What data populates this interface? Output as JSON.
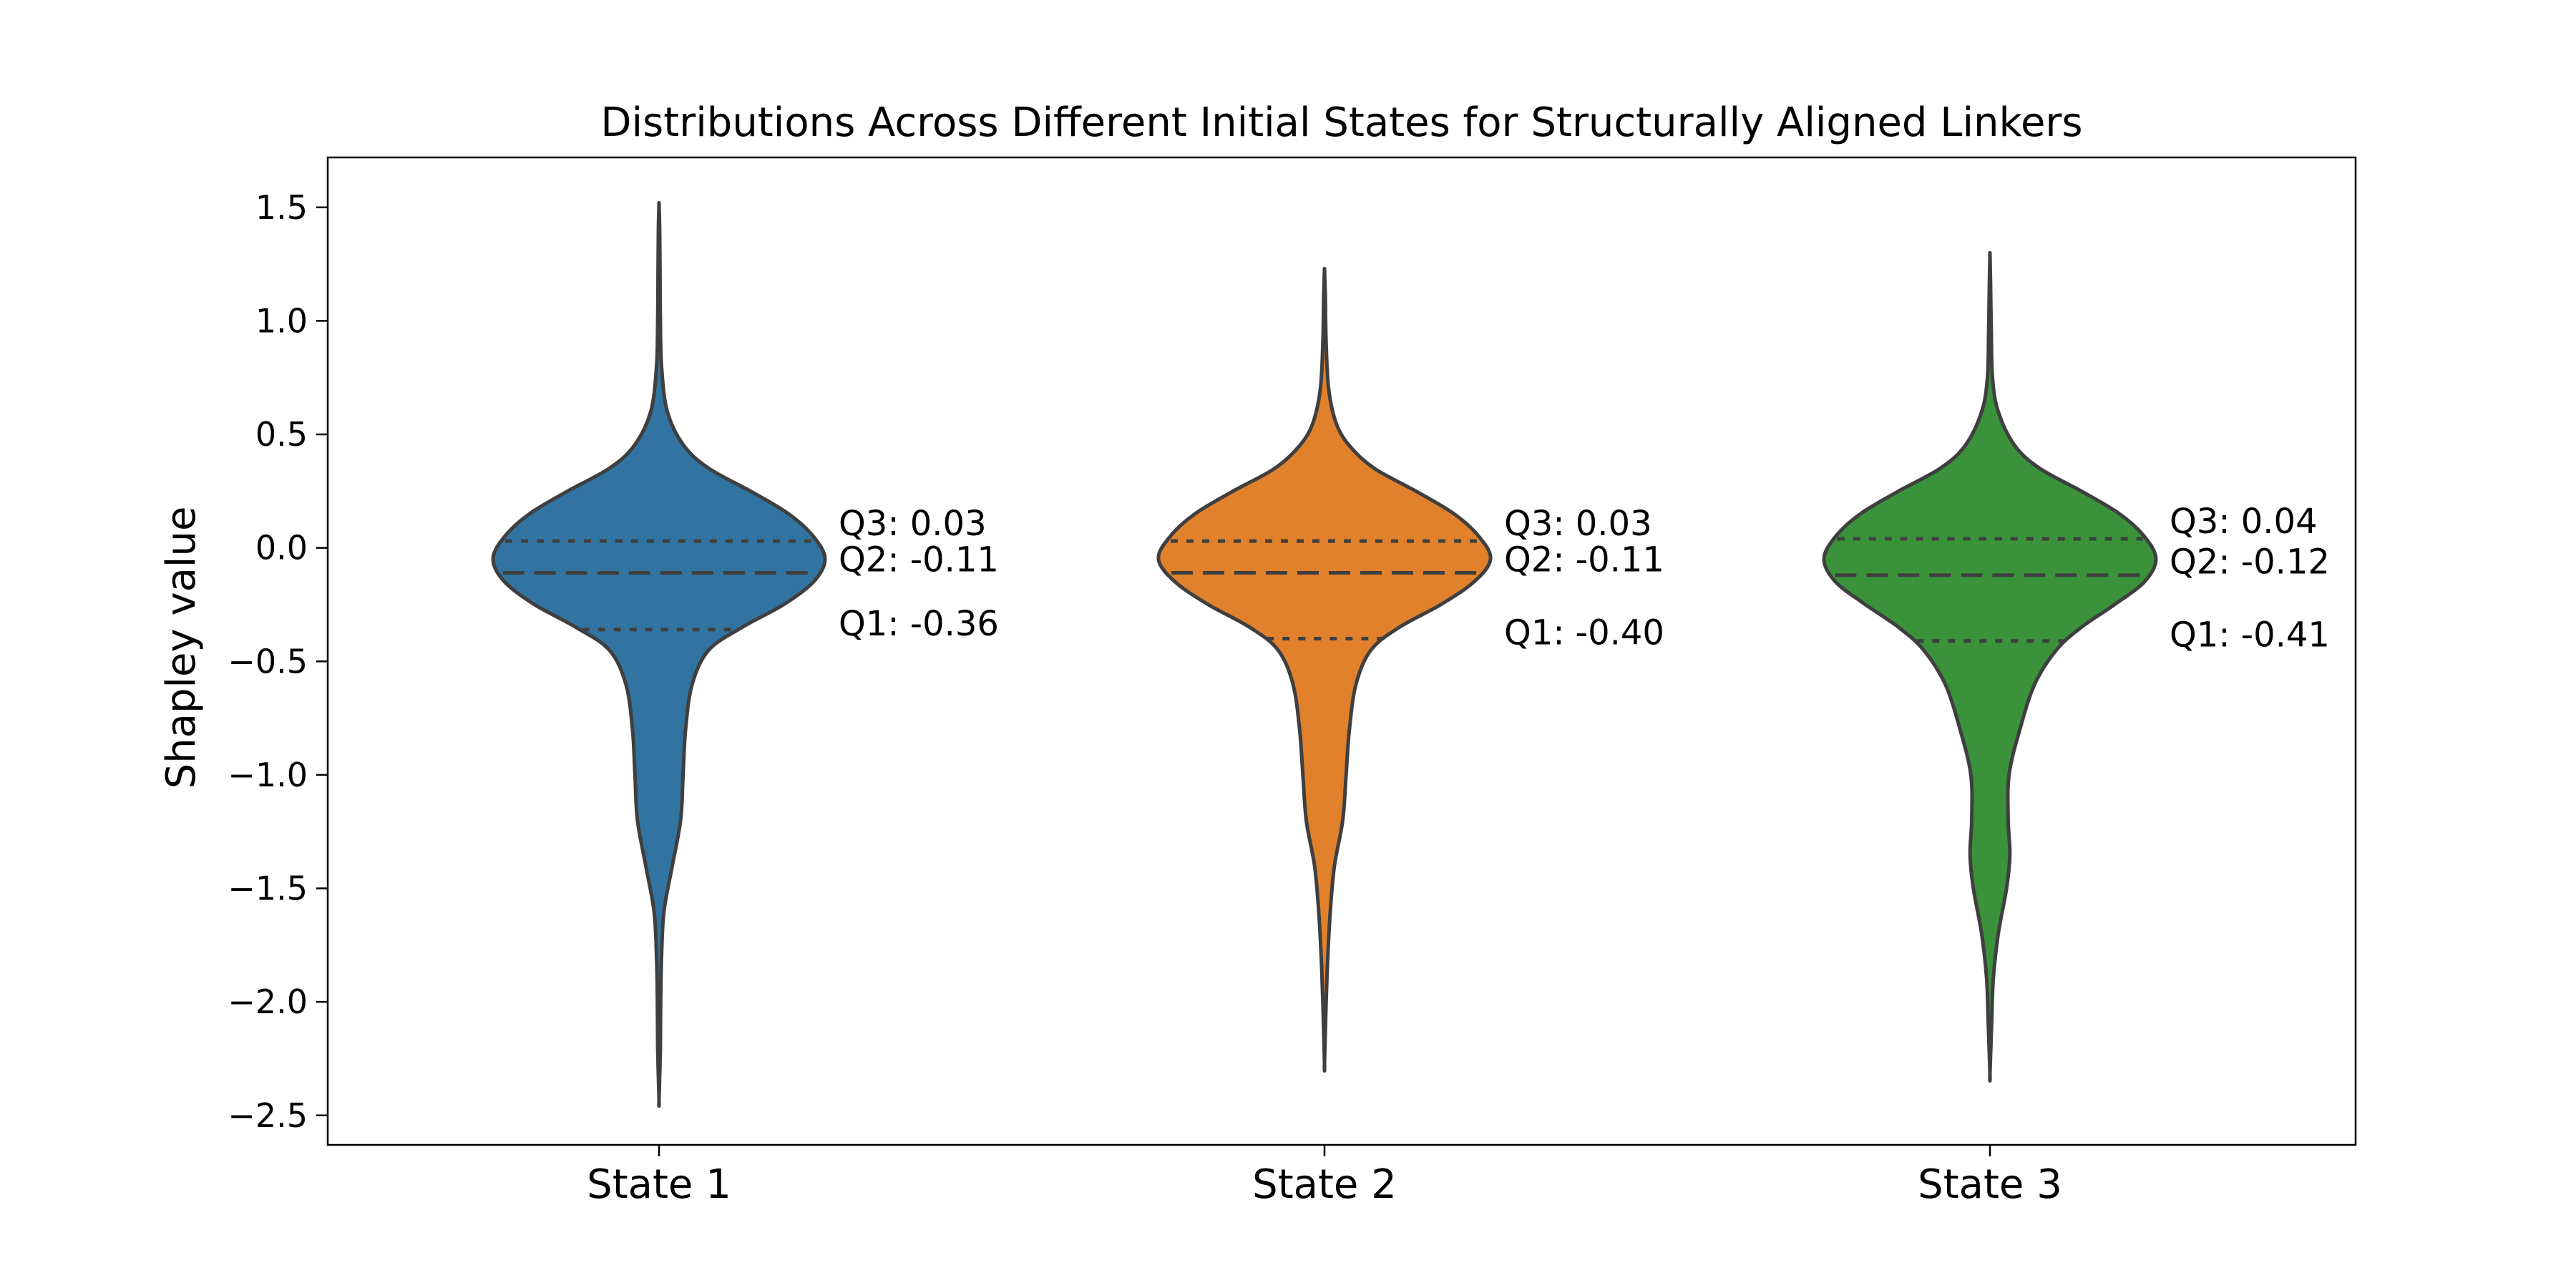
{
  "chart_data": {
    "type": "violin",
    "title": "Distributions Across Different Initial States for Structurally Aligned Linkers",
    "xlabel": "",
    "ylabel": "Shapley value",
    "ylim": [
      -2.63,
      1.72
    ],
    "yticks": [
      1.5,
      1.0,
      0.5,
      0.0,
      -0.5,
      -1.0,
      -1.5,
      -2.0,
      -2.5
    ],
    "ytick_labels": [
      "1.5",
      "1.0",
      "0.5",
      "0.0",
      "−0.5",
      "−1.0",
      "−1.5",
      "−2.0",
      "−2.5"
    ],
    "categories": [
      "State 1",
      "State 2",
      "State 3"
    ],
    "grid": false,
    "legend": "none",
    "series": [
      {
        "category": "State 1",
        "color": "#3274a1",
        "min": -2.43,
        "max": 1.52,
        "q1": -0.36,
        "q2": -0.11,
        "q3": 0.03,
        "q1_label": "Q1: -0.36",
        "q2_label": "Q2: -0.11",
        "q3_label": "Q3: 0.03",
        "profile": [
          [
            1.52,
            0.0
          ],
          [
            1.4,
            0.004
          ],
          [
            1.2,
            0.006
          ],
          [
            1.0,
            0.008
          ],
          [
            0.8,
            0.015
          ],
          [
            0.6,
            0.05
          ],
          [
            0.45,
            0.15
          ],
          [
            0.35,
            0.3
          ],
          [
            0.25,
            0.55
          ],
          [
            0.15,
            0.78
          ],
          [
            0.05,
            0.93
          ],
          [
            -0.05,
            1.0
          ],
          [
            -0.15,
            0.93
          ],
          [
            -0.25,
            0.75
          ],
          [
            -0.35,
            0.5
          ],
          [
            -0.45,
            0.3
          ],
          [
            -0.6,
            0.2
          ],
          [
            -0.8,
            0.16
          ],
          [
            -1.0,
            0.145
          ],
          [
            -1.2,
            0.13
          ],
          [
            -1.4,
            0.08
          ],
          [
            -1.6,
            0.03
          ],
          [
            -1.8,
            0.015
          ],
          [
            -2.0,
            0.01
          ],
          [
            -2.2,
            0.008
          ],
          [
            -2.43,
            0.0
          ]
        ]
      },
      {
        "category": "State 2",
        "color": "#e1812c",
        "min": -2.27,
        "max": 1.23,
        "q1": -0.4,
        "q2": -0.11,
        "q3": 0.03,
        "q1_label": "Q1: -0.40",
        "q2_label": "Q2: -0.11",
        "q3_label": "Q3: 0.03",
        "profile": [
          [
            1.23,
            0.0
          ],
          [
            1.1,
            0.005
          ],
          [
            0.9,
            0.01
          ],
          [
            0.7,
            0.025
          ],
          [
            0.55,
            0.07
          ],
          [
            0.45,
            0.15
          ],
          [
            0.35,
            0.3
          ],
          [
            0.25,
            0.55
          ],
          [
            0.15,
            0.78
          ],
          [
            0.05,
            0.93
          ],
          [
            -0.05,
            1.0
          ],
          [
            -0.15,
            0.9
          ],
          [
            -0.25,
            0.7
          ],
          [
            -0.35,
            0.45
          ],
          [
            -0.45,
            0.28
          ],
          [
            -0.6,
            0.19
          ],
          [
            -0.8,
            0.15
          ],
          [
            -1.0,
            0.13
          ],
          [
            -1.2,
            0.11
          ],
          [
            -1.4,
            0.06
          ],
          [
            -1.6,
            0.035
          ],
          [
            -1.8,
            0.02
          ],
          [
            -2.0,
            0.01
          ],
          [
            -2.27,
            0.0
          ]
        ]
      },
      {
        "category": "State 3",
        "color": "#3a923a",
        "min": -2.32,
        "max": 1.3,
        "q1": -0.41,
        "q2": -0.12,
        "q3": 0.04,
        "q1_label": "Q1: -0.41",
        "q2_label": "Q2: -0.12",
        "q3_label": "Q3: 0.04",
        "profile": [
          [
            1.3,
            0.0
          ],
          [
            1.15,
            0.004
          ],
          [
            0.95,
            0.008
          ],
          [
            0.75,
            0.015
          ],
          [
            0.6,
            0.05
          ],
          [
            0.45,
            0.15
          ],
          [
            0.35,
            0.3
          ],
          [
            0.25,
            0.55
          ],
          [
            0.15,
            0.78
          ],
          [
            0.05,
            0.93
          ],
          [
            -0.05,
            1.0
          ],
          [
            -0.15,
            0.93
          ],
          [
            -0.25,
            0.75
          ],
          [
            -0.35,
            0.55
          ],
          [
            -0.45,
            0.4
          ],
          [
            -0.6,
            0.27
          ],
          [
            -0.8,
            0.18
          ],
          [
            -1.0,
            0.115
          ],
          [
            -1.2,
            0.11
          ],
          [
            -1.35,
            0.12
          ],
          [
            -1.5,
            0.1
          ],
          [
            -1.7,
            0.05
          ],
          [
            -1.9,
            0.02
          ],
          [
            -2.1,
            0.01
          ],
          [
            -2.32,
            0.0
          ]
        ]
      }
    ]
  }
}
